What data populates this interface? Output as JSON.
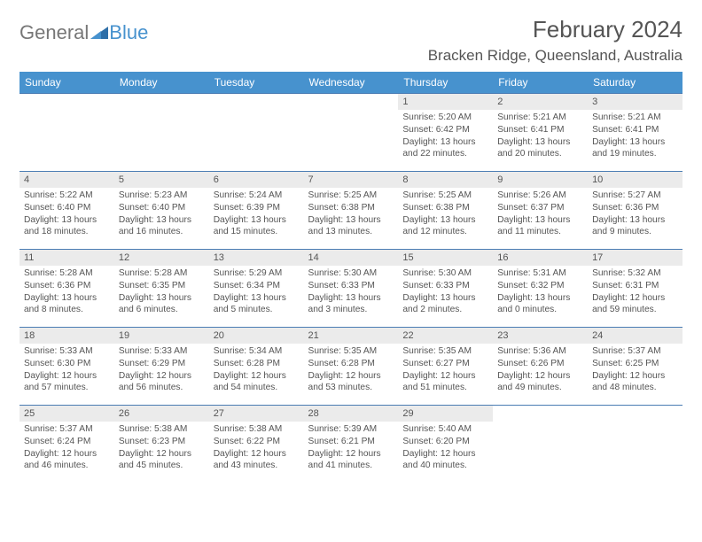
{
  "logo": {
    "text1": "General",
    "text2": "Blue"
  },
  "title": "February 2024",
  "location": "Bracken Ridge, Queensland, Australia",
  "colors": {
    "header_bg": "#4792ce",
    "header_text": "#ffffff",
    "band_bg": "#ebebeb",
    "band_border": "#4a7cb3",
    "text": "#555555",
    "logo_gray": "#777777",
    "logo_blue": "#4792ce"
  },
  "days_of_week": [
    "Sunday",
    "Monday",
    "Tuesday",
    "Wednesday",
    "Thursday",
    "Friday",
    "Saturday"
  ],
  "weeks": [
    [
      null,
      null,
      null,
      null,
      {
        "n": "1",
        "sr": "Sunrise: 5:20 AM",
        "ss": "Sunset: 6:42 PM",
        "d1": "Daylight: 13 hours",
        "d2": "and 22 minutes."
      },
      {
        "n": "2",
        "sr": "Sunrise: 5:21 AM",
        "ss": "Sunset: 6:41 PM",
        "d1": "Daylight: 13 hours",
        "d2": "and 20 minutes."
      },
      {
        "n": "3",
        "sr": "Sunrise: 5:21 AM",
        "ss": "Sunset: 6:41 PM",
        "d1": "Daylight: 13 hours",
        "d2": "and 19 minutes."
      }
    ],
    [
      {
        "n": "4",
        "sr": "Sunrise: 5:22 AM",
        "ss": "Sunset: 6:40 PM",
        "d1": "Daylight: 13 hours",
        "d2": "and 18 minutes."
      },
      {
        "n": "5",
        "sr": "Sunrise: 5:23 AM",
        "ss": "Sunset: 6:40 PM",
        "d1": "Daylight: 13 hours",
        "d2": "and 16 minutes."
      },
      {
        "n": "6",
        "sr": "Sunrise: 5:24 AM",
        "ss": "Sunset: 6:39 PM",
        "d1": "Daylight: 13 hours",
        "d2": "and 15 minutes."
      },
      {
        "n": "7",
        "sr": "Sunrise: 5:25 AM",
        "ss": "Sunset: 6:38 PM",
        "d1": "Daylight: 13 hours",
        "d2": "and 13 minutes."
      },
      {
        "n": "8",
        "sr": "Sunrise: 5:25 AM",
        "ss": "Sunset: 6:38 PM",
        "d1": "Daylight: 13 hours",
        "d2": "and 12 minutes."
      },
      {
        "n": "9",
        "sr": "Sunrise: 5:26 AM",
        "ss": "Sunset: 6:37 PM",
        "d1": "Daylight: 13 hours",
        "d2": "and 11 minutes."
      },
      {
        "n": "10",
        "sr": "Sunrise: 5:27 AM",
        "ss": "Sunset: 6:36 PM",
        "d1": "Daylight: 13 hours",
        "d2": "and 9 minutes."
      }
    ],
    [
      {
        "n": "11",
        "sr": "Sunrise: 5:28 AM",
        "ss": "Sunset: 6:36 PM",
        "d1": "Daylight: 13 hours",
        "d2": "and 8 minutes."
      },
      {
        "n": "12",
        "sr": "Sunrise: 5:28 AM",
        "ss": "Sunset: 6:35 PM",
        "d1": "Daylight: 13 hours",
        "d2": "and 6 minutes."
      },
      {
        "n": "13",
        "sr": "Sunrise: 5:29 AM",
        "ss": "Sunset: 6:34 PM",
        "d1": "Daylight: 13 hours",
        "d2": "and 5 minutes."
      },
      {
        "n": "14",
        "sr": "Sunrise: 5:30 AM",
        "ss": "Sunset: 6:33 PM",
        "d1": "Daylight: 13 hours",
        "d2": "and 3 minutes."
      },
      {
        "n": "15",
        "sr": "Sunrise: 5:30 AM",
        "ss": "Sunset: 6:33 PM",
        "d1": "Daylight: 13 hours",
        "d2": "and 2 minutes."
      },
      {
        "n": "16",
        "sr": "Sunrise: 5:31 AM",
        "ss": "Sunset: 6:32 PM",
        "d1": "Daylight: 13 hours",
        "d2": "and 0 minutes."
      },
      {
        "n": "17",
        "sr": "Sunrise: 5:32 AM",
        "ss": "Sunset: 6:31 PM",
        "d1": "Daylight: 12 hours",
        "d2": "and 59 minutes."
      }
    ],
    [
      {
        "n": "18",
        "sr": "Sunrise: 5:33 AM",
        "ss": "Sunset: 6:30 PM",
        "d1": "Daylight: 12 hours",
        "d2": "and 57 minutes."
      },
      {
        "n": "19",
        "sr": "Sunrise: 5:33 AM",
        "ss": "Sunset: 6:29 PM",
        "d1": "Daylight: 12 hours",
        "d2": "and 56 minutes."
      },
      {
        "n": "20",
        "sr": "Sunrise: 5:34 AM",
        "ss": "Sunset: 6:28 PM",
        "d1": "Daylight: 12 hours",
        "d2": "and 54 minutes."
      },
      {
        "n": "21",
        "sr": "Sunrise: 5:35 AM",
        "ss": "Sunset: 6:28 PM",
        "d1": "Daylight: 12 hours",
        "d2": "and 53 minutes."
      },
      {
        "n": "22",
        "sr": "Sunrise: 5:35 AM",
        "ss": "Sunset: 6:27 PM",
        "d1": "Daylight: 12 hours",
        "d2": "and 51 minutes."
      },
      {
        "n": "23",
        "sr": "Sunrise: 5:36 AM",
        "ss": "Sunset: 6:26 PM",
        "d1": "Daylight: 12 hours",
        "d2": "and 49 minutes."
      },
      {
        "n": "24",
        "sr": "Sunrise: 5:37 AM",
        "ss": "Sunset: 6:25 PM",
        "d1": "Daylight: 12 hours",
        "d2": "and 48 minutes."
      }
    ],
    [
      {
        "n": "25",
        "sr": "Sunrise: 5:37 AM",
        "ss": "Sunset: 6:24 PM",
        "d1": "Daylight: 12 hours",
        "d2": "and 46 minutes."
      },
      {
        "n": "26",
        "sr": "Sunrise: 5:38 AM",
        "ss": "Sunset: 6:23 PM",
        "d1": "Daylight: 12 hours",
        "d2": "and 45 minutes."
      },
      {
        "n": "27",
        "sr": "Sunrise: 5:38 AM",
        "ss": "Sunset: 6:22 PM",
        "d1": "Daylight: 12 hours",
        "d2": "and 43 minutes."
      },
      {
        "n": "28",
        "sr": "Sunrise: 5:39 AM",
        "ss": "Sunset: 6:21 PM",
        "d1": "Daylight: 12 hours",
        "d2": "and 41 minutes."
      },
      {
        "n": "29",
        "sr": "Sunrise: 5:40 AM",
        "ss": "Sunset: 6:20 PM",
        "d1": "Daylight: 12 hours",
        "d2": "and 40 minutes."
      },
      null,
      null
    ]
  ]
}
